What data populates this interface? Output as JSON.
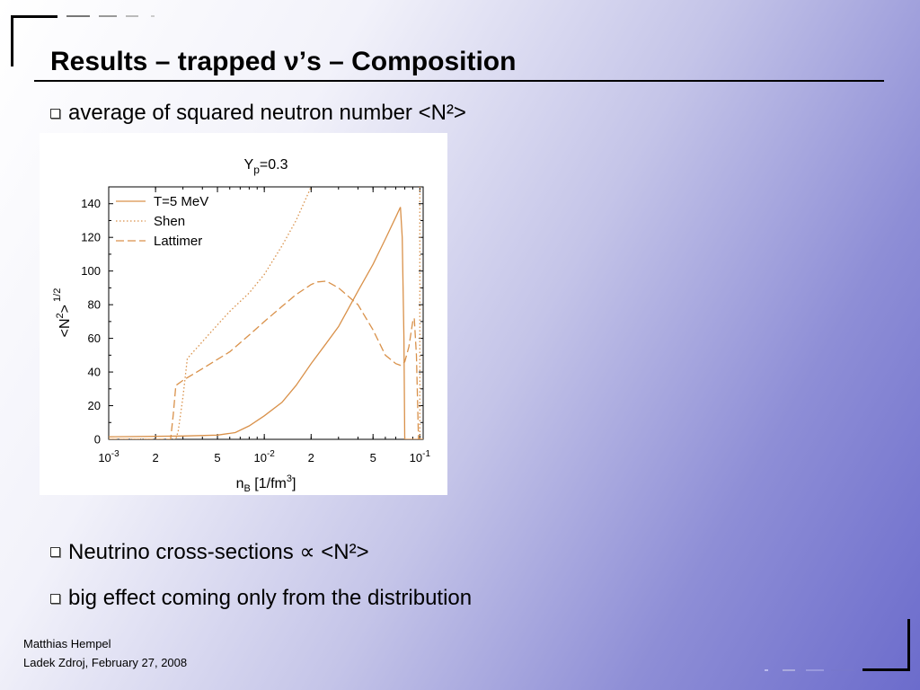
{
  "slide": {
    "title": "Results – trapped ν’s – Composition",
    "bullets": [
      "average of squared neutron number <N²>",
      "Neutrino cross-sections ∝ <N²>",
      "big effect coming only from the distribution"
    ]
  },
  "footer": {
    "author": "Matthias Hempel",
    "venue_date": "Ladek Zdroj, February 27, 2008"
  },
  "colors": {
    "curve": "#d9914a",
    "accent": "#000000"
  },
  "chart_data": {
    "type": "line",
    "title": "Y_p=0.3",
    "title_main": "Y",
    "title_sub": "p",
    "title_rest": "=0.3",
    "xlabel": "n_B [1/fm^3]",
    "ylabel": "<N^2>^1/2",
    "xscale": "log",
    "xlim": [
      0.001,
      0.105
    ],
    "ylim": [
      0,
      150
    ],
    "grid": false,
    "legend": "top-left",
    "xticks": [
      {
        "value": 0.001,
        "base": "10",
        "exp": "-3"
      },
      {
        "value": 0.002,
        "label": "2"
      },
      {
        "value": 0.005,
        "label": "5"
      },
      {
        "value": 0.01,
        "base": "10",
        "exp": "-2"
      },
      {
        "value": 0.02,
        "label": "2"
      },
      {
        "value": 0.05,
        "label": "5"
      },
      {
        "value": 0.1,
        "base": "10",
        "exp": "-1"
      }
    ],
    "yticks": [
      0,
      20,
      40,
      60,
      80,
      100,
      120,
      140
    ],
    "series": [
      {
        "name": "T=5 MeV",
        "style": "solid",
        "points": [
          [
            0.001,
            1.5
          ],
          [
            0.003,
            2
          ],
          [
            0.005,
            2.5
          ],
          [
            0.0065,
            4
          ],
          [
            0.008,
            8
          ],
          [
            0.01,
            14
          ],
          [
            0.013,
            22
          ],
          [
            0.016,
            32
          ],
          [
            0.02,
            45
          ],
          [
            0.025,
            57
          ],
          [
            0.03,
            67
          ],
          [
            0.04,
            88
          ],
          [
            0.05,
            104
          ],
          [
            0.06,
            119
          ],
          [
            0.07,
            132
          ],
          [
            0.075,
            138
          ],
          [
            0.077,
            120
          ],
          [
            0.079,
            60
          ],
          [
            0.08,
            0
          ],
          [
            0.105,
            0
          ]
        ]
      },
      {
        "name": "Shen",
        "style": "dotted",
        "points": [
          [
            0.001,
            0
          ],
          [
            0.0027,
            0
          ],
          [
            0.0028,
            5
          ],
          [
            0.003,
            25
          ],
          [
            0.0032,
            48
          ],
          [
            0.004,
            58
          ],
          [
            0.005,
            68
          ],
          [
            0.006,
            76
          ],
          [
            0.008,
            87
          ],
          [
            0.01,
            98
          ],
          [
            0.013,
            115
          ],
          [
            0.016,
            130
          ],
          [
            0.02,
            150
          ]
        ]
      },
      {
        "name": "Lattimer",
        "style": "dashed",
        "points": [
          [
            0.001,
            0
          ],
          [
            0.0025,
            0
          ],
          [
            0.0026,
            15
          ],
          [
            0.0027,
            32
          ],
          [
            0.003,
            35
          ],
          [
            0.004,
            42
          ],
          [
            0.006,
            52
          ],
          [
            0.008,
            62
          ],
          [
            0.01,
            70
          ],
          [
            0.013,
            79
          ],
          [
            0.016,
            86
          ],
          [
            0.02,
            92
          ],
          [
            0.022,
            93.5
          ],
          [
            0.025,
            94
          ],
          [
            0.03,
            90
          ],
          [
            0.04,
            80
          ],
          [
            0.05,
            65
          ],
          [
            0.06,
            50
          ],
          [
            0.07,
            45
          ],
          [
            0.075,
            44
          ],
          [
            0.08,
            46
          ],
          [
            0.085,
            55
          ],
          [
            0.09,
            70
          ],
          [
            0.092,
            72
          ],
          [
            0.095,
            50
          ],
          [
            0.098,
            0
          ],
          [
            0.105,
            0
          ]
        ]
      }
    ],
    "right_edge_curve": {
      "style": "dotted",
      "points": [
        [
          0.1,
          0
        ],
        [
          0.1,
          150
        ]
      ]
    }
  }
}
